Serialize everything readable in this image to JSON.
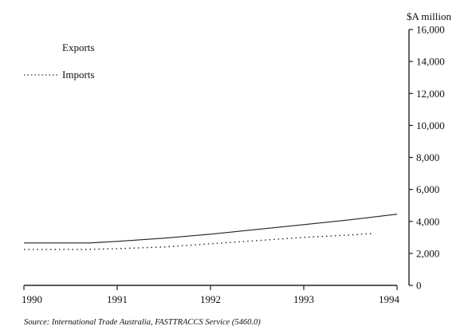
{
  "chart_data": {
    "type": "line",
    "title": "",
    "xlabel": "",
    "ylabel": "$A million",
    "x_ticks": [
      "1990",
      "1991",
      "1992",
      "1993",
      "1994"
    ],
    "xlim": [
      1990,
      1994
    ],
    "ylim": [
      0,
      16000
    ],
    "y_ticks": [
      "0",
      "2,000",
      "4,000",
      "6,000",
      "8,000",
      "10,000",
      "12,000",
      "14,000",
      "16,000"
    ],
    "y_axis_side": "right",
    "grid": false,
    "legend_position": "top-left",
    "series": [
      {
        "name": "Exports",
        "style": "solid",
        "x": [
          1990.0,
          1990.7,
          1991.0,
          1991.5,
          1992.0,
          1992.5,
          1993.0,
          1993.5,
          1994.0
        ],
        "y": [
          2650,
          2650,
          2750,
          2950,
          3200,
          3500,
          3800,
          4100,
          4450
        ]
      },
      {
        "name": "Imports",
        "style": "dotted",
        "x": [
          1990.0,
          1990.7,
          1991.0,
          1991.5,
          1992.0,
          1992.5,
          1993.0,
          1993.5,
          1993.75
        ],
        "y": [
          2250,
          2250,
          2300,
          2400,
          2600,
          2800,
          3000,
          3150,
          3250
        ]
      }
    ],
    "source": "Source: International Trade Australia, FASTTRACCS Service (5460.0)"
  }
}
